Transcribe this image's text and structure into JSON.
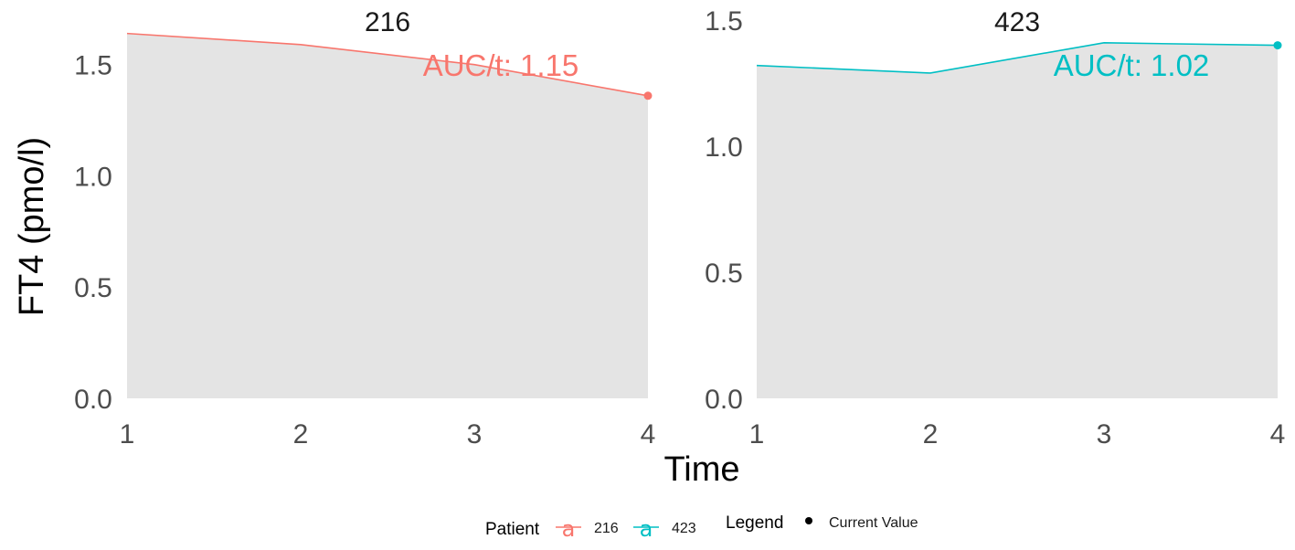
{
  "chart_data": {
    "type": "area",
    "ylabel": "FT4 (pmo/l)",
    "xlabel": "Time",
    "xlim": [
      1,
      4
    ],
    "x_ticks": [
      "1",
      "2",
      "3",
      "4"
    ],
    "facets": [
      {
        "title": "216",
        "x": [
          1,
          2,
          3,
          4
        ],
        "values": [
          1.64,
          1.59,
          1.5,
          1.36
        ],
        "ylim": [
          0,
          1.7
        ],
        "y_ticks": [
          "0.0",
          "0.5",
          "1.0",
          "1.5"
        ],
        "annotation": "AUC/t: 1.15",
        "color": "#F8766D"
      },
      {
        "title": "423",
        "x": [
          1,
          2,
          3,
          4
        ],
        "values": [
          1.32,
          1.29,
          1.41,
          1.4
        ],
        "ylim": [
          0,
          1.5
        ],
        "y_ticks": [
          "0.0",
          "0.5",
          "1.0",
          "1.5"
        ],
        "annotation": "AUC/t: 1.02",
        "color": "#00BFC4"
      }
    ],
    "area_fill": "#e4e4e4",
    "legend": {
      "position": "bottom",
      "patient_title": "Patient",
      "patients": [
        {
          "label": "216",
          "color": "#F8766D"
        },
        {
          "label": "423",
          "color": "#00BFC4"
        }
      ],
      "legend_title": "Legend",
      "point_label": "Current Value",
      "key_glyph": "a"
    }
  }
}
